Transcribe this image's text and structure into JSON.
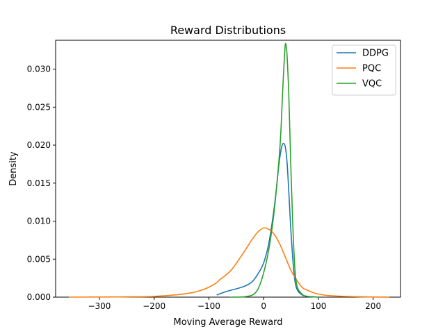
{
  "chart_data": {
    "type": "line",
    "title": "Reward Distributions",
    "xlabel": "Moving Average Reward",
    "ylabel": "Density",
    "xlim": [
      -380,
      250
    ],
    "ylim": [
      0,
      0.0338
    ],
    "xticks": [
      -300,
      -200,
      -100,
      0,
      100,
      200
    ],
    "xtick_labels": [
      "−300",
      "−200",
      "−100",
      "0",
      "100",
      "200"
    ],
    "yticks": [
      0.0,
      0.005,
      0.01,
      0.015,
      0.02,
      0.025,
      0.03
    ],
    "ytick_labels": [
      "0.000",
      "0.005",
      "0.010",
      "0.015",
      "0.020",
      "0.025",
      "0.030"
    ],
    "grid": false,
    "legend_position": "upper right",
    "series": [
      {
        "name": "DDPG",
        "color": "#1f77b4",
        "x": [
          -85,
          -70,
          -60,
          -40,
          -30,
          -20,
          -10,
          0,
          10,
          20,
          28,
          33,
          37,
          40,
          43,
          46,
          50,
          55,
          60,
          70,
          80,
          90,
          100
        ],
        "y": [
          0.0003,
          0.0007,
          0.0009,
          0.0013,
          0.0016,
          0.0021,
          0.0031,
          0.0045,
          0.0073,
          0.0122,
          0.0175,
          0.0198,
          0.0202,
          0.0196,
          0.0175,
          0.0138,
          0.0085,
          0.0035,
          0.0012,
          0.0003,
          0.0001,
          5e-05,
          0.0
        ]
      },
      {
        "name": "PQC",
        "color": "#ff7f0e",
        "x": [
          -355,
          -300,
          -250,
          -200,
          -160,
          -130,
          -110,
          -90,
          -80,
          -60,
          -40,
          -30,
          -20,
          -10,
          0,
          10,
          20,
          30,
          40,
          50,
          60,
          70,
          80,
          90,
          100,
          120,
          150,
          200,
          228
        ],
        "y": [
          0.0,
          2e-05,
          4e-05,
          0.0001,
          0.0003,
          0.0006,
          0.001,
          0.0017,
          0.0023,
          0.0035,
          0.0055,
          0.0066,
          0.0077,
          0.0086,
          0.0091,
          0.0089,
          0.0082,
          0.0069,
          0.0052,
          0.0035,
          0.0023,
          0.0013,
          0.0009,
          0.0006,
          0.0004,
          0.0002,
          0.0001,
          2e-05,
          0.0
        ]
      },
      {
        "name": "VQC",
        "color": "#2ca02c",
        "x": [
          -60,
          -40,
          -30,
          -20,
          -10,
          0,
          10,
          20,
          30,
          35,
          39,
          41,
          43,
          46,
          50,
          55,
          60,
          70,
          80,
          90,
          100
        ],
        "y": [
          0.0,
          2e-05,
          0.0001,
          0.0003,
          0.0011,
          0.0032,
          0.0065,
          0.0118,
          0.02,
          0.0275,
          0.0328,
          0.0331,
          0.0315,
          0.0265,
          0.0165,
          0.0065,
          0.0018,
          0.0004,
          0.0001,
          5e-05,
          0.0
        ]
      }
    ]
  }
}
